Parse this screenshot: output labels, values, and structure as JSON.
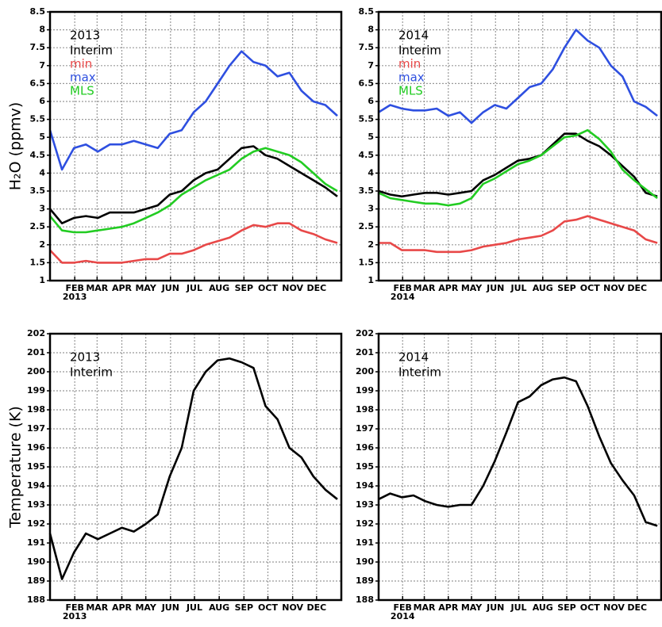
{
  "chart_data": [
    {
      "type": "line",
      "annotation": "2013",
      "ylabel": "H₂O (ppmv)",
      "x_year": "2013",
      "x": [
        1,
        16,
        31,
        46,
        61,
        76,
        91,
        106,
        121,
        136,
        151,
        166,
        181,
        196,
        211,
        226,
        241,
        256,
        271,
        286,
        301,
        316,
        331,
        346,
        361
      ],
      "xlim": [
        1,
        366
      ],
      "xticks": [
        {
          "value": 32,
          "label": "FEB"
        },
        {
          "value": 60,
          "label": "MAR"
        },
        {
          "value": 91,
          "label": "APR"
        },
        {
          "value": 121,
          "label": "MAY"
        },
        {
          "value": 152,
          "label": "JUN"
        },
        {
          "value": 182,
          "label": "JUL"
        },
        {
          "value": 213,
          "label": "AUG"
        },
        {
          "value": 244,
          "label": "SEP"
        },
        {
          "value": 274,
          "label": "OCT"
        },
        {
          "value": 305,
          "label": "NOV"
        },
        {
          "value": 335,
          "label": "DEC"
        }
      ],
      "ylim": [
        1,
        8.5
      ],
      "yticks": [
        1,
        1.5,
        2,
        2.5,
        3,
        3.5,
        4,
        4.5,
        5,
        5.5,
        6,
        6.5,
        7,
        7.5,
        8,
        8.5
      ],
      "grid": true,
      "series": [
        {
          "name": "Interim",
          "color": "#000000",
          "values": [
            3.0,
            2.6,
            2.75,
            2.8,
            2.75,
            2.9,
            2.9,
            2.9,
            3.0,
            3.1,
            3.4,
            3.5,
            3.8,
            4.0,
            4.1,
            4.4,
            4.7,
            4.75,
            4.5,
            4.4,
            4.2,
            4.0,
            3.8,
            3.6,
            3.35
          ]
        },
        {
          "name": "min",
          "color": "#e84848",
          "values": [
            1.85,
            1.5,
            1.5,
            1.55,
            1.5,
            1.5,
            1.5,
            1.55,
            1.6,
            1.6,
            1.75,
            1.75,
            1.85,
            2.0,
            2.1,
            2.2,
            2.4,
            2.55,
            2.5,
            2.6,
            2.6,
            2.4,
            2.3,
            2.15,
            2.05
          ]
        },
        {
          "name": "max",
          "color": "#2e4fe0",
          "values": [
            5.2,
            4.1,
            4.7,
            4.8,
            4.6,
            4.8,
            4.8,
            4.9,
            4.8,
            4.7,
            5.1,
            5.2,
            5.7,
            6.0,
            6.5,
            7.0,
            7.4,
            7.1,
            7.0,
            6.7,
            6.8,
            6.3,
            6.0,
            5.9,
            5.6
          ]
        },
        {
          "name": "MLS",
          "color": "#22cc22",
          "values": [
            2.8,
            2.4,
            2.35,
            2.35,
            2.4,
            2.45,
            2.5,
            2.6,
            2.75,
            2.9,
            3.1,
            3.4,
            3.6,
            3.8,
            3.95,
            4.1,
            4.4,
            4.6,
            4.7,
            4.6,
            4.5,
            4.3,
            4.0,
            3.7,
            3.5
          ]
        }
      ]
    },
    {
      "type": "line",
      "annotation": "2014",
      "x_year": "2014",
      "x": [
        1,
        16,
        31,
        46,
        61,
        76,
        91,
        106,
        121,
        136,
        151,
        166,
        181,
        196,
        211,
        226,
        241,
        256,
        271,
        286,
        301,
        316,
        331,
        346,
        361
      ],
      "xlim": [
        1,
        366
      ],
      "xticks": [
        {
          "value": 32,
          "label": "FEB"
        },
        {
          "value": 60,
          "label": "MAR"
        },
        {
          "value": 91,
          "label": "APR"
        },
        {
          "value": 121,
          "label": "MAY"
        },
        {
          "value": 152,
          "label": "JUN"
        },
        {
          "value": 182,
          "label": "JUL"
        },
        {
          "value": 213,
          "label": "AUG"
        },
        {
          "value": 244,
          "label": "SEP"
        },
        {
          "value": 274,
          "label": "OCT"
        },
        {
          "value": 305,
          "label": "NOV"
        },
        {
          "value": 335,
          "label": "DEC"
        }
      ],
      "ylim": [
        1,
        8.5
      ],
      "yticks": [
        1,
        1.5,
        2,
        2.5,
        3,
        3.5,
        4,
        4.5,
        5,
        5.5,
        6,
        6.5,
        7,
        7.5,
        8,
        8.5
      ],
      "grid": true,
      "series": [
        {
          "name": "Interim",
          "color": "#000000",
          "values": [
            3.5,
            3.4,
            3.35,
            3.4,
            3.45,
            3.45,
            3.4,
            3.45,
            3.5,
            3.8,
            3.95,
            4.15,
            4.35,
            4.4,
            4.5,
            4.8,
            5.1,
            5.1,
            4.9,
            4.75,
            4.5,
            4.2,
            3.9,
            3.45,
            3.35
          ]
        },
        {
          "name": "min",
          "color": "#e84848",
          "values": [
            2.05,
            2.05,
            1.85,
            1.85,
            1.85,
            1.8,
            1.8,
            1.8,
            1.85,
            1.95,
            2.0,
            2.05,
            2.15,
            2.2,
            2.25,
            2.4,
            2.65,
            2.7,
            2.8,
            2.7,
            2.6,
            2.5,
            2.4,
            2.15,
            2.05
          ]
        },
        {
          "name": "max",
          "color": "#2e4fe0",
          "values": [
            5.7,
            5.9,
            5.8,
            5.75,
            5.75,
            5.8,
            5.6,
            5.7,
            5.4,
            5.7,
            5.9,
            5.8,
            6.1,
            6.4,
            6.5,
            6.9,
            7.5,
            8.0,
            7.7,
            7.5,
            7.0,
            6.7,
            6.0,
            5.85,
            5.6
          ]
        },
        {
          "name": "MLS",
          "color": "#22cc22",
          "values": [
            3.45,
            3.3,
            3.25,
            3.2,
            3.15,
            3.15,
            3.1,
            3.15,
            3.3,
            3.7,
            3.85,
            4.05,
            4.25,
            4.35,
            4.5,
            4.75,
            5.0,
            5.05,
            5.2,
            4.95,
            4.6,
            4.1,
            3.8,
            3.55,
            3.3
          ]
        }
      ]
    },
    {
      "type": "line",
      "annotation": "2013",
      "ylabel": "Temperature (K)",
      "x_year": "2013",
      "x": [
        1,
        16,
        31,
        46,
        61,
        76,
        91,
        106,
        121,
        136,
        151,
        166,
        181,
        196,
        211,
        226,
        241,
        256,
        271,
        286,
        301,
        316,
        331,
        346,
        361
      ],
      "xlim": [
        1,
        366
      ],
      "xticks": [
        {
          "value": 32,
          "label": "FEB"
        },
        {
          "value": 60,
          "label": "MAR"
        },
        {
          "value": 91,
          "label": "APR"
        },
        {
          "value": 121,
          "label": "MAY"
        },
        {
          "value": 152,
          "label": "JUN"
        },
        {
          "value": 182,
          "label": "JUL"
        },
        {
          "value": 213,
          "label": "AUG"
        },
        {
          "value": 244,
          "label": "SEP"
        },
        {
          "value": 274,
          "label": "OCT"
        },
        {
          "value": 305,
          "label": "NOV"
        },
        {
          "value": 335,
          "label": "DEC"
        }
      ],
      "ylim": [
        188,
        202
      ],
      "yticks": [
        188,
        189,
        190,
        191,
        192,
        193,
        194,
        195,
        196,
        197,
        198,
        199,
        200,
        201,
        202
      ],
      "grid": true,
      "series": [
        {
          "name": "Interim",
          "color": "#000000",
          "values": [
            191.5,
            189.1,
            190.5,
            191.5,
            191.2,
            191.5,
            191.8,
            191.6,
            192.0,
            192.5,
            194.5,
            196.0,
            199.0,
            200.0,
            200.6,
            200.7,
            200.5,
            200.2,
            198.2,
            197.5,
            196.0,
            195.5,
            194.5,
            193.8,
            193.3
          ]
        }
      ]
    },
    {
      "type": "line",
      "annotation": "2014",
      "x_year": "2014",
      "x": [
        1,
        16,
        31,
        46,
        61,
        76,
        91,
        106,
        121,
        136,
        151,
        166,
        181,
        196,
        211,
        226,
        241,
        256,
        271,
        286,
        301,
        316,
        331,
        346,
        361
      ],
      "xlim": [
        1,
        366
      ],
      "xticks": [
        {
          "value": 32,
          "label": "FEB"
        },
        {
          "value": 60,
          "label": "MAR"
        },
        {
          "value": 91,
          "label": "APR"
        },
        {
          "value": 121,
          "label": "MAY"
        },
        {
          "value": 152,
          "label": "JUN"
        },
        {
          "value": 182,
          "label": "JUL"
        },
        {
          "value": 213,
          "label": "AUG"
        },
        {
          "value": 244,
          "label": "SEP"
        },
        {
          "value": 274,
          "label": "OCT"
        },
        {
          "value": 305,
          "label": "NOV"
        },
        {
          "value": 335,
          "label": "DEC"
        }
      ],
      "ylim": [
        188,
        202
      ],
      "yticks": [
        188,
        189,
        190,
        191,
        192,
        193,
        194,
        195,
        196,
        197,
        198,
        199,
        200,
        201,
        202
      ],
      "grid": true,
      "series": [
        {
          "name": "Interim",
          "color": "#000000",
          "values": [
            193.3,
            193.6,
            193.4,
            193.5,
            193.2,
            193.0,
            192.9,
            193.0,
            193.0,
            194.0,
            195.3,
            196.8,
            198.4,
            198.7,
            199.3,
            199.6,
            199.7,
            199.5,
            198.2,
            196.6,
            195.2,
            194.3,
            193.5,
            192.1,
            191.9
          ]
        }
      ]
    }
  ]
}
